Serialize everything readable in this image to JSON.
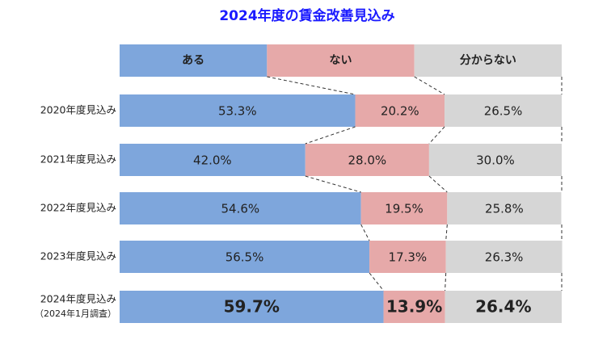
{
  "chart_data": {
    "type": "stacked-bar-100",
    "title": "2024年度の賃金改善見込み",
    "categories": [
      [
        "2020年度見込み"
      ],
      [
        "2021年度見込み"
      ],
      [
        "2022年度見込み"
      ],
      [
        "2023年度見込み"
      ],
      [
        "2024年度見込み",
        "（2024年1月調査）"
      ]
    ],
    "xlim": [
      0,
      100
    ],
    "series": [
      {
        "name": "ある",
        "color": "#7ea6dc",
        "values": [
          53.3,
          42.0,
          54.6,
          56.5,
          59.7
        ],
        "value_labels": [
          "53.3%",
          "42.0%",
          "54.6%",
          "56.5%",
          "59.7%"
        ]
      },
      {
        "name": "ない",
        "color": "#e6a9a9",
        "values": [
          20.2,
          28.0,
          19.5,
          17.3,
          13.9
        ],
        "value_labels": [
          "20.2%",
          "28.0%",
          "19.5%",
          "17.3%",
          "13.9%"
        ]
      },
      {
        "name": "分からない",
        "color": "#d6d6d6",
        "values": [
          26.5,
          30.0,
          25.8,
          26.3,
          26.4
        ],
        "value_labels": [
          "26.5%",
          "30.0%",
          "25.8%",
          "26.3%",
          "26.4%"
        ]
      }
    ]
  }
}
